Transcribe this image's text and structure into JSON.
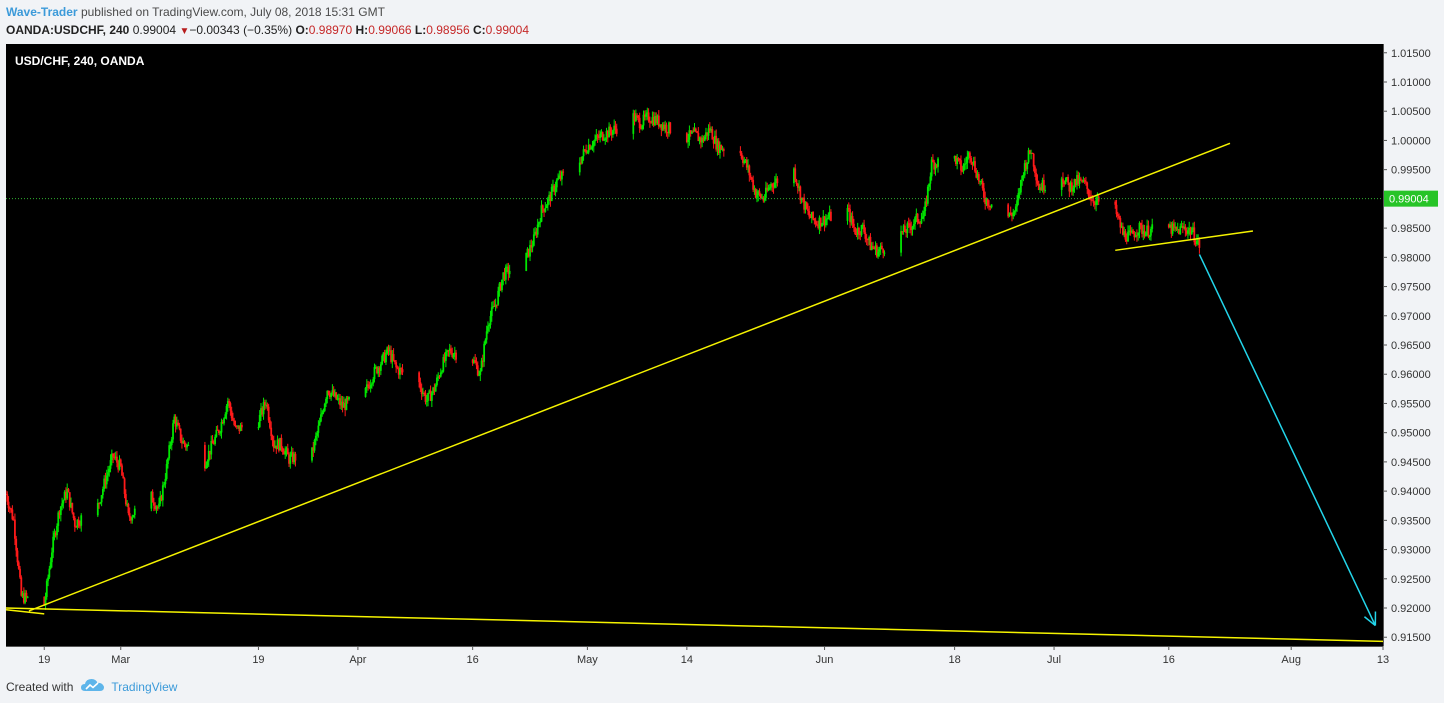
{
  "header": {
    "author": "Wave-Trader",
    "published_text": "published on TradingView.com, July 08, 2018 15:31 GMT",
    "symbol": "OANDA:USDCHF, 240",
    "last": "0.99004",
    "change_arrow": "▼",
    "change": "−0.00343 (−0.35%)",
    "o_label": "O:",
    "o_value": "0.98970",
    "h_label": "H:",
    "h_value": "0.99066",
    "l_label": "L:",
    "l_value": "0.98956",
    "c_label": "C:",
    "c_value": "0.99004"
  },
  "footer": {
    "created_with": "Created with",
    "brand": "TradingView",
    "logo_icon": "tradingview-cloud-icon"
  },
  "colors": {
    "background": "#000000",
    "candle_up": "#00e600",
    "candle_down": "#ff1a1a",
    "trendline": "#f5f300",
    "projection": "#23d5ea",
    "price_line": "#2fb32f",
    "price_label_bg": "#27c427"
  },
  "chart_data": {
    "type": "candlestick",
    "title": "USD/CHF, 240, OANDA",
    "current_price": "0.99004",
    "ylim": [
      0.9135,
      1.0165
    ],
    "y_ticks": [
      "1.01500",
      "1.01000",
      "1.00500",
      "1.00000",
      "0.99500",
      "0.99000",
      "0.98500",
      "0.98000",
      "0.97500",
      "0.97000",
      "0.96500",
      "0.96000",
      "0.95500",
      "0.95000",
      "0.94500",
      "0.94000",
      "0.93500",
      "0.93000",
      "0.92500",
      "0.92000",
      "0.91500"
    ],
    "x_ticks": [
      {
        "label": "19",
        "date": "2018-02-19"
      },
      {
        "label": "Mar",
        "date": "2018-03-01"
      },
      {
        "label": "19",
        "date": "2018-03-19"
      },
      {
        "label": "Apr",
        "date": "2018-04-01"
      },
      {
        "label": "16",
        "date": "2018-04-16"
      },
      {
        "label": "May",
        "date": "2018-05-01"
      },
      {
        "label": "14",
        "date": "2018-05-14"
      },
      {
        "label": "Jun",
        "date": "2018-06-01"
      },
      {
        "label": "18",
        "date": "2018-06-18"
      },
      {
        "label": "Jul",
        "date": "2018-07-01"
      },
      {
        "label": "16",
        "date": "2018-07-16"
      },
      {
        "label": "Aug",
        "date": "2018-08-01"
      },
      {
        "label": "13",
        "date": "2018-08-13"
      }
    ],
    "x_range": [
      "2018-02-14",
      "2018-08-13"
    ],
    "price_path": [
      [
        "2018-02-14",
        0.9395
      ],
      [
        "2018-02-15",
        0.935
      ],
      [
        "2018-02-16",
        0.922
      ],
      [
        "2018-02-19",
        0.9205
      ],
      [
        "2018-02-20",
        0.93
      ],
      [
        "2018-02-21",
        0.937
      ],
      [
        "2018-02-22",
        0.94
      ],
      [
        "2018-02-23",
        0.9345
      ],
      [
        "2018-02-26",
        0.9375
      ],
      [
        "2018-02-27",
        0.942
      ],
      [
        "2018-02-28",
        0.946
      ],
      [
        "2018-03-01",
        0.944
      ],
      [
        "2018-03-02",
        0.9355
      ],
      [
        "2018-03-05",
        0.939
      ],
      [
        "2018-03-06",
        0.937
      ],
      [
        "2018-03-07",
        0.944
      ],
      [
        "2018-03-08",
        0.9525
      ],
      [
        "2018-03-09",
        0.9485
      ],
      [
        "2018-03-12",
        0.945
      ],
      [
        "2018-03-13",
        0.948
      ],
      [
        "2018-03-14",
        0.951
      ],
      [
        "2018-03-15",
        0.9555
      ],
      [
        "2018-03-16",
        0.9505
      ],
      [
        "2018-03-19",
        0.952
      ],
      [
        "2018-03-20",
        0.9555
      ],
      [
        "2018-03-21",
        0.948
      ],
      [
        "2018-03-22",
        0.948
      ],
      [
        "2018-03-23",
        0.9455
      ],
      [
        "2018-03-26",
        0.9465
      ],
      [
        "2018-03-27",
        0.9515
      ],
      [
        "2018-03-28",
        0.9575
      ],
      [
        "2018-03-29",
        0.956
      ],
      [
        "2018-03-30",
        0.9545
      ],
      [
        "2018-04-02",
        0.957
      ],
      [
        "2018-04-03",
        0.96
      ],
      [
        "2018-04-04",
        0.962
      ],
      [
        "2018-04-05",
        0.964
      ],
      [
        "2018-04-06",
        0.961
      ],
      [
        "2018-04-09",
        0.9585
      ],
      [
        "2018-04-10",
        0.9555
      ],
      [
        "2018-04-11",
        0.9575
      ],
      [
        "2018-04-12",
        0.9615
      ],
      [
        "2018-04-13",
        0.964
      ],
      [
        "2018-04-16",
        0.9625
      ],
      [
        "2018-04-17",
        0.96
      ],
      [
        "2018-04-18",
        0.969
      ],
      [
        "2018-04-19",
        0.972
      ],
      [
        "2018-04-20",
        0.977
      ],
      [
        "2018-04-23",
        0.98
      ],
      [
        "2018-04-24",
        0.983
      ],
      [
        "2018-04-25",
        0.988
      ],
      [
        "2018-04-26",
        0.99
      ],
      [
        "2018-04-27",
        0.993
      ],
      [
        "2018-04-30",
        0.9965
      ],
      [
        "2018-05-01",
        0.999
      ],
      [
        "2018-05-02",
        1.0
      ],
      [
        "2018-05-03",
        1.001
      ],
      [
        "2018-05-04",
        1.0015
      ],
      [
        "2018-05-07",
        1.004
      ],
      [
        "2018-05-08",
        1.003
      ],
      [
        "2018-05-09",
        1.004
      ],
      [
        "2018-05-10",
        1.0035
      ],
      [
        "2018-05-11",
        1.0025
      ],
      [
        "2018-05-14",
        1.0005
      ],
      [
        "2018-05-15",
        1.001
      ],
      [
        "2018-05-16",
        1.0
      ],
      [
        "2018-05-17",
        1.002
      ],
      [
        "2018-05-18",
        0.999
      ],
      [
        "2018-05-21",
        0.998
      ],
      [
        "2018-05-22",
        0.995
      ],
      [
        "2018-05-23",
        0.991
      ],
      [
        "2018-05-24",
        0.99
      ],
      [
        "2018-05-25",
        0.9925
      ],
      [
        "2018-05-28",
        0.995
      ],
      [
        "2018-05-29",
        0.99
      ],
      [
        "2018-05-30",
        0.987
      ],
      [
        "2018-05-31",
        0.986
      ],
      [
        "2018-06-01",
        0.9865
      ],
      [
        "2018-06-04",
        0.988
      ],
      [
        "2018-06-05",
        0.9845
      ],
      [
        "2018-06-06",
        0.985
      ],
      [
        "2018-06-07",
        0.982
      ],
      [
        "2018-06-08",
        0.981
      ],
      [
        "2018-06-11",
        0.984
      ],
      [
        "2018-06-12",
        0.985
      ],
      [
        "2018-06-13",
        0.9865
      ],
      [
        "2018-06-14",
        0.987
      ],
      [
        "2018-06-15",
        0.996
      ],
      [
        "2018-06-18",
        0.997
      ],
      [
        "2018-06-19",
        0.995
      ],
      [
        "2018-06-20",
        0.998
      ],
      [
        "2018-06-21",
        0.994
      ],
      [
        "2018-06-22",
        0.99
      ],
      [
        "2018-06-25",
        0.987
      ],
      [
        "2018-06-26",
        0.988
      ],
      [
        "2018-06-27",
        0.995
      ],
      [
        "2018-06-28",
        0.9985
      ],
      [
        "2018-06-29",
        0.992
      ],
      [
        "2018-07-02",
        0.994
      ],
      [
        "2018-07-03",
        0.992
      ],
      [
        "2018-07-04",
        0.993
      ],
      [
        "2018-07-05",
        0.9925
      ],
      [
        "2018-07-06",
        0.99
      ],
      [
        "2018-07-09",
        0.988
      ],
      [
        "2018-07-10",
        0.984
      ],
      [
        "2018-07-11",
        0.9835
      ],
      [
        "2018-07-12",
        0.985
      ],
      [
        "2018-07-13",
        0.9845
      ],
      [
        "2018-07-16",
        0.985
      ],
      [
        "2018-07-17",
        0.9845
      ],
      [
        "2018-07-18",
        0.985
      ],
      [
        "2018-07-19",
        0.9845
      ],
      [
        "2018-07-20",
        0.982
      ]
    ],
    "annotations": [
      {
        "type": "trendline",
        "color": "yellow",
        "from": [
          "2018-02-17",
          0.9195
        ],
        "to": [
          "2018-07-24",
          0.9995
        ]
      },
      {
        "type": "trendline",
        "color": "yellow",
        "from": [
          "2018-02-14",
          0.92
        ],
        "to": [
          "2018-08-13",
          0.9143
        ]
      },
      {
        "type": "trendline",
        "color": "yellow",
        "from": [
          "2018-02-14",
          0.9197
        ],
        "to": [
          "2018-02-19",
          0.919
        ]
      },
      {
        "type": "trendline",
        "color": "yellow",
        "from": [
          "2018-07-09",
          0.9812
        ],
        "to": [
          "2018-07-27",
          0.9845
        ]
      },
      {
        "type": "projection_arrow",
        "color": "cyan",
        "from": [
          "2018-07-20",
          0.9805
        ],
        "to": [
          "2018-08-12",
          0.917
        ]
      }
    ]
  }
}
